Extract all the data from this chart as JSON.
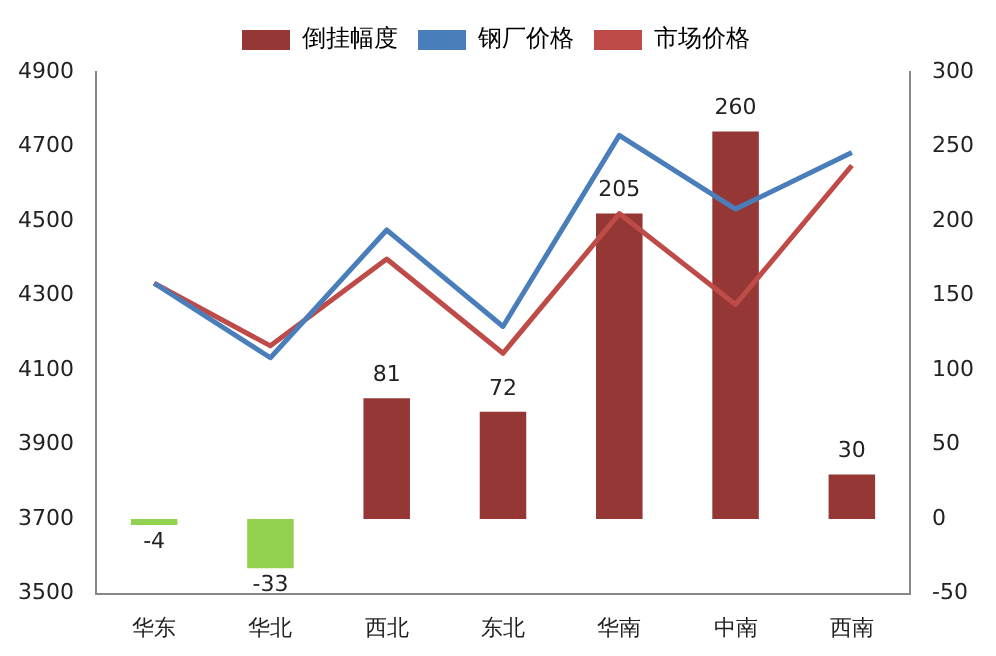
{
  "chart_data": {
    "type": "bar",
    "categories": [
      "华东",
      "华北",
      "西北",
      "东北",
      "华南",
      "中南",
      "西南"
    ],
    "series": [
      {
        "name": "倒挂幅度",
        "axis": "y2",
        "color": "#953735",
        "colors": [
          "#92d050",
          "#92d050",
          "#953735",
          "#953735",
          "#953735",
          "#953735",
          "#953735"
        ],
        "values": [
          -4,
          -33,
          81,
          72,
          205,
          260,
          30
        ],
        "value_labels": [
          "-4",
          "-33",
          "81",
          "72",
          "205",
          "260",
          "30"
        ]
      },
      {
        "name": "钢厂价格",
        "type": "line",
        "color": "#4a7ebb",
        "values": [
          4333,
          4133,
          4476,
          4217,
          4730,
          4532,
          4684
        ]
      },
      {
        "name": "市场价格",
        "type": "line",
        "color": "#be4b48",
        "values": [
          4333,
          4165,
          4398,
          4145,
          4520,
          4276,
          4649
        ]
      }
    ],
    "ylim": [
      3500,
      4900
    ],
    "yticks": [
      3500,
      3700,
      3900,
      4100,
      4300,
      4500,
      4700,
      4900
    ],
    "y2lim": [
      -50,
      300
    ],
    "y2ticks": [
      -50,
      0,
      50,
      100,
      150,
      200,
      250,
      300
    ],
    "grid": false,
    "legend": "top",
    "marker": "none"
  }
}
